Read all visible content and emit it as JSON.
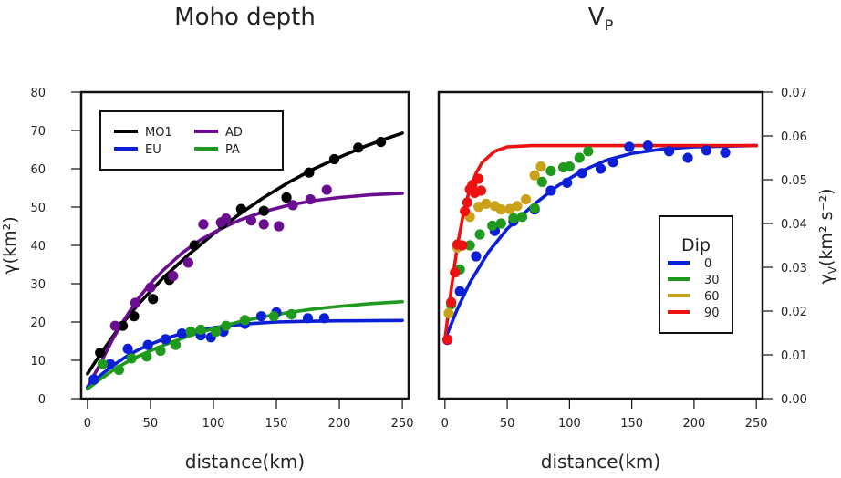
{
  "chart_data": [
    {
      "type": "scatter",
      "title": "Moho depth",
      "xlabel": "distance(km)",
      "ylabel": "γ(km²)",
      "xlim": [
        0,
        250
      ],
      "ylim": [
        0,
        80
      ],
      "xticks": [
        0,
        50,
        100,
        150,
        200,
        250
      ],
      "yticks": [
        0,
        10,
        20,
        30,
        40,
        50,
        60,
        70,
        80
      ],
      "legend": {
        "position": "top-left",
        "entries": [
          {
            "label": "MO1",
            "color": "#000000"
          },
          {
            "label": "AD",
            "color": "#6a0d91"
          },
          {
            "label": "EU",
            "color": "#0a1fd6"
          },
          {
            "label": "PA",
            "color": "#1f9a1f"
          }
        ]
      },
      "series": [
        {
          "name": "MO1",
          "color": "#000000",
          "points": [
            [
              10,
              12
            ],
            [
              28,
              19
            ],
            [
              37,
              21.5
            ],
            [
              52,
              26
            ],
            [
              65,
              31
            ],
            [
              85,
              40
            ],
            [
              107,
              45.5
            ],
            [
              122,
              49.5
            ],
            [
              140,
              49
            ],
            [
              158,
              52.5
            ],
            [
              176,
              59
            ],
            [
              196,
              62.5
            ],
            [
              215,
              65.5
            ],
            [
              233,
              67
            ]
          ],
          "curve": [
            [
              0,
              6.5
            ],
            [
              10,
              11.5
            ],
            [
              25,
              18.5
            ],
            [
              40,
              24.5
            ],
            [
              60,
              31.5
            ],
            [
              80,
              37.5
            ],
            [
              100,
              43
            ],
            [
              120,
              48
            ],
            [
              140,
              52.5
            ],
            [
              160,
              56.5
            ],
            [
              180,
              60
            ],
            [
              200,
              63
            ],
            [
              220,
              65.8
            ],
            [
              240,
              68.2
            ],
            [
              250,
              69.3
            ]
          ]
        },
        {
          "name": "AD",
          "color": "#6a0d91",
          "points": [
            [
              22,
              19
            ],
            [
              38,
              25
            ],
            [
              50,
              29
            ],
            [
              68,
              32
            ],
            [
              80,
              35.5
            ],
            [
              92,
              45.5
            ],
            [
              106,
              46
            ],
            [
              110,
              47
            ],
            [
              130,
              46.5
            ],
            [
              140,
              45.5
            ],
            [
              152,
              45
            ],
            [
              163,
              50.5
            ],
            [
              177,
              52
            ],
            [
              190,
              54.5
            ]
          ],
          "curve": [
            [
              0,
              3
            ],
            [
              10,
              9
            ],
            [
              20,
              15.5
            ],
            [
              30,
              21
            ],
            [
              40,
              26
            ],
            [
              50,
              30
            ],
            [
              60,
              33.5
            ],
            [
              75,
              38
            ],
            [
              90,
              41.5
            ],
            [
              105,
              44.2
            ],
            [
              120,
              46.5
            ],
            [
              140,
              48.8
            ],
            [
              160,
              50.5
            ],
            [
              180,
              51.7
            ],
            [
              200,
              52.5
            ],
            [
              225,
              53.2
            ],
            [
              250,
              53.6
            ]
          ]
        },
        {
          "name": "EU",
          "color": "#0a1fd6",
          "points": [
            [
              5,
              5
            ],
            [
              18,
              9
            ],
            [
              32,
              13
            ],
            [
              48,
              14
            ],
            [
              62,
              15.5
            ],
            [
              75,
              17
            ],
            [
              90,
              16.5
            ],
            [
              98,
              16
            ],
            [
              108,
              17.5
            ],
            [
              125,
              19.5
            ],
            [
              138,
              21.5
            ],
            [
              150,
              22.5
            ],
            [
              162,
              22
            ],
            [
              175,
              21
            ],
            [
              188,
              21
            ]
          ],
          "curve": [
            [
              0,
              3
            ],
            [
              10,
              6
            ],
            [
              20,
              8.6
            ],
            [
              30,
              10.8
            ],
            [
              40,
              12.7
            ],
            [
              50,
              14.2
            ],
            [
              60,
              15.5
            ],
            [
              75,
              17
            ],
            [
              90,
              18
            ],
            [
              110,
              19
            ],
            [
              130,
              19.6
            ],
            [
              150,
              20
            ],
            [
              175,
              20.2
            ],
            [
              200,
              20.3
            ],
            [
              250,
              20.4
            ]
          ]
        },
        {
          "name": "PA",
          "color": "#1f9a1f",
          "points": [
            [
              12,
              9
            ],
            [
              25,
              7.5
            ],
            [
              35,
              10.5
            ],
            [
              47,
              11
            ],
            [
              58,
              12.5
            ],
            [
              70,
              14
            ],
            [
              82,
              17.5
            ],
            [
              90,
              18
            ],
            [
              102,
              17.5
            ],
            [
              110,
              19
            ],
            [
              125,
              20.5
            ],
            [
              148,
              21.5
            ],
            [
              162,
              22
            ]
          ],
          "curve": [
            [
              0,
              2.5
            ],
            [
              10,
              5
            ],
            [
              20,
              7.3
            ],
            [
              30,
              9.3
            ],
            [
              40,
              11
            ],
            [
              50,
              12.5
            ],
            [
              60,
              13.9
            ],
            [
              80,
              16.3
            ],
            [
              100,
              18.3
            ],
            [
              120,
              20
            ],
            [
              140,
              21.4
            ],
            [
              160,
              22.5
            ],
            [
              180,
              23.4
            ],
            [
              200,
              24.1
            ],
            [
              225,
              24.8
            ],
            [
              250,
              25.3
            ]
          ]
        }
      ]
    },
    {
      "type": "scatter",
      "title": "V",
      "title_sub": "P",
      "xlabel": "distance(km)",
      "ylabel": "γ",
      "ylabel_sub": "V",
      "ylabel_rest": "(km² s⁻²)",
      "xlim": [
        0,
        250
      ],
      "ylim": [
        0,
        0.07
      ],
      "xticks": [
        0,
        50,
        100,
        150,
        200,
        250
      ],
      "yticks": [
        "0.00",
        "0.01",
        "0.02",
        "0.03",
        "0.04",
        "0.05",
        "0.06",
        "0.07"
      ],
      "legend": {
        "position": "center-right",
        "title": "Dip",
        "entries": [
          {
            "label": "0",
            "color": "#0a1fd6"
          },
          {
            "label": "30",
            "color": "#1f9a1f"
          },
          {
            "label": "60",
            "color": "#c9a21a"
          },
          {
            "label": "90",
            "color": "#ee1111"
          }
        ]
      },
      "series": [
        {
          "name": "0",
          "color": "#0a1fd6",
          "points": [
            [
              2,
              0.0134
            ],
            [
              12,
              0.0245
            ],
            [
              25,
              0.0325
            ],
            [
              40,
              0.0383
            ],
            [
              55,
              0.0405
            ],
            [
              72,
              0.0432
            ],
            [
              85,
              0.0475
            ],
            [
              98,
              0.0493
            ],
            [
              110,
              0.0515
            ],
            [
              125,
              0.0525
            ],
            [
              135,
              0.054
            ],
            [
              148,
              0.0575
            ],
            [
              163,
              0.0578
            ],
            [
              180,
              0.0565
            ],
            [
              195,
              0.055
            ],
            [
              210,
              0.0567
            ],
            [
              225,
              0.0562
            ]
          ],
          "curve": [
            [
              0,
              0.0135
            ],
            [
              10,
              0.0205
            ],
            [
              20,
              0.0265
            ],
            [
              35,
              0.0335
            ],
            [
              50,
              0.0388
            ],
            [
              70,
              0.044
            ],
            [
              90,
              0.0485
            ],
            [
              110,
              0.052
            ],
            [
              130,
              0.0545
            ],
            [
              150,
              0.056
            ],
            [
              175,
              0.057
            ],
            [
              200,
              0.0575
            ],
            [
              250,
              0.0578
            ]
          ]
        },
        {
          "name": "30",
          "color": "#1f9a1f",
          "points": [
            [
              5,
              0.0215
            ],
            [
              12,
              0.0295
            ],
            [
              20,
              0.035
            ],
            [
              28,
              0.0375
            ],
            [
              38,
              0.0395
            ],
            [
              45,
              0.04
            ],
            [
              55,
              0.0412
            ],
            [
              62,
              0.0415
            ],
            [
              72,
              0.0435
            ],
            [
              78,
              0.0495
            ],
            [
              85,
              0.052
            ],
            [
              95,
              0.0528
            ],
            [
              100,
              0.053
            ],
            [
              108,
              0.055
            ],
            [
              115,
              0.0565
            ]
          ]
        },
        {
          "name": "60",
          "color": "#c9a21a",
          "points": [
            [
              3,
              0.0195
            ],
            [
              10,
              0.0345
            ],
            [
              20,
              0.0415
            ],
            [
              27,
              0.0438
            ],
            [
              33,
              0.0445
            ],
            [
              40,
              0.044
            ],
            [
              45,
              0.0432
            ],
            [
              52,
              0.0433
            ],
            [
              58,
              0.044
            ],
            [
              65,
              0.0455
            ],
            [
              72,
              0.051
            ],
            [
              77,
              0.053
            ]
          ]
        },
        {
          "name": "90",
          "color": "#ee1111",
          "points": [
            [
              2,
              0.0135
            ],
            [
              5,
              0.022
            ],
            [
              8,
              0.0288
            ],
            [
              10,
              0.0352
            ],
            [
              14,
              0.035
            ],
            [
              16,
              0.0428
            ],
            [
              18,
              0.0448
            ],
            [
              20,
              0.0478
            ],
            [
              22,
              0.0488
            ],
            [
              24,
              0.047
            ],
            [
              27,
              0.0502
            ],
            [
              29,
              0.0475
            ]
          ],
          "curve": [
            [
              0,
              0.0135
            ],
            [
              5,
              0.025
            ],
            [
              10,
              0.035
            ],
            [
              15,
              0.0425
            ],
            [
              20,
              0.048
            ],
            [
              25,
              0.0515
            ],
            [
              30,
              0.054
            ],
            [
              40,
              0.0565
            ],
            [
              50,
              0.0575
            ],
            [
              70,
              0.0578
            ],
            [
              100,
              0.0578
            ],
            [
              250,
              0.0578
            ]
          ]
        }
      ]
    }
  ]
}
